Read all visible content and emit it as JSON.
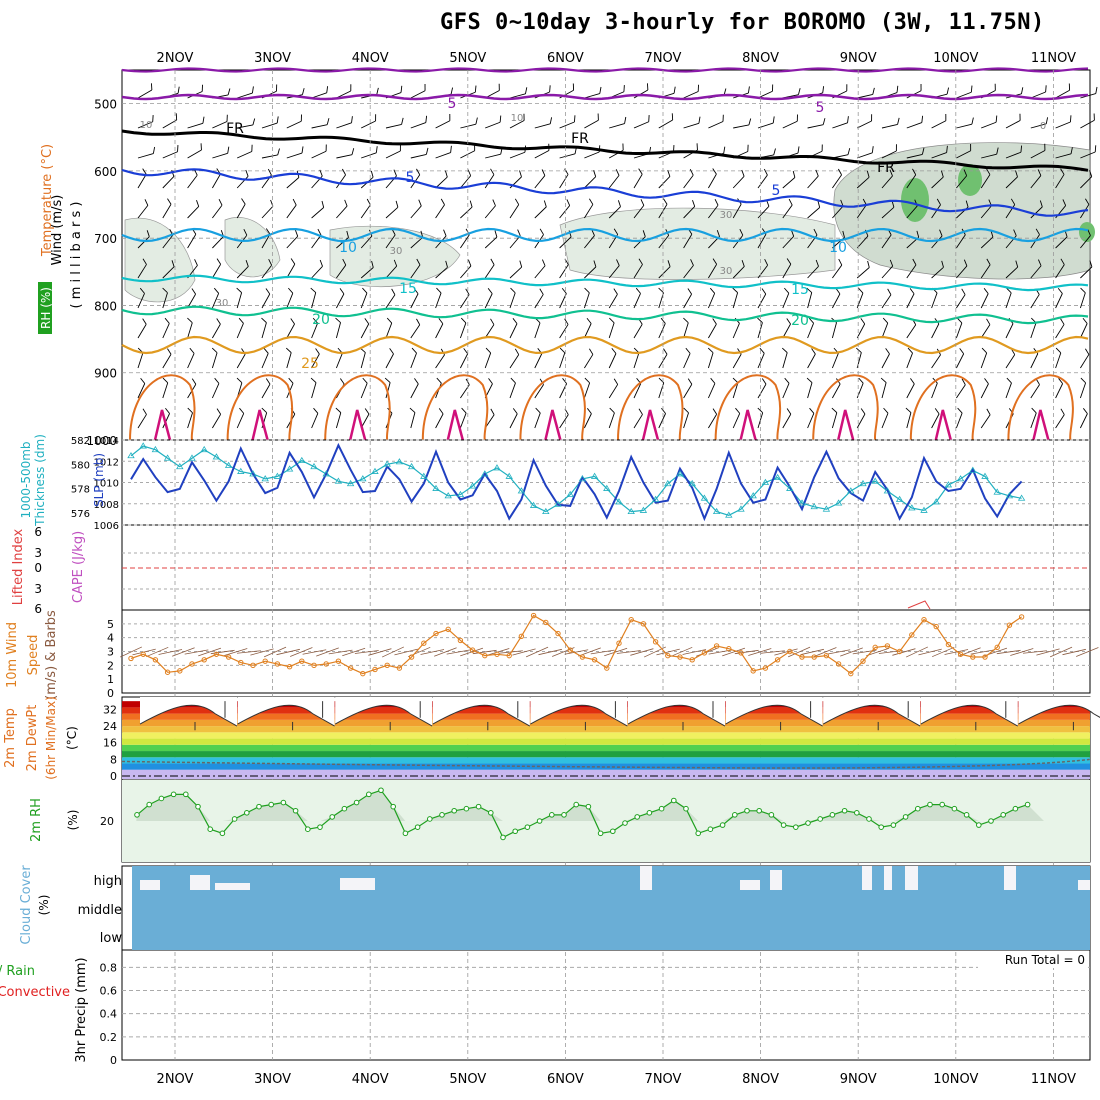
{
  "title": "GFS 0~10day 3-hourly for BOROMO (3W, 11.75N)",
  "days": [
    "2NOV",
    "3NOV",
    "4NOV",
    "5NOV",
    "6NOV",
    "7NOV",
    "8NOV",
    "9NOV",
    "10NOV",
    "11NOV"
  ],
  "colors": {
    "temp": "#e03030",
    "rh": "#20a020",
    "thick": "#20b0c0",
    "slp": "#2040c0",
    "cape": "#c050c0",
    "li": "#e04040",
    "wind10": "#e08020",
    "cloud": "#6aaed6",
    "precip_total": "#20a020",
    "precip_conv": "#e02020"
  },
  "panels": {
    "upper": {
      "labels": [
        "Wind (m/s)",
        "Temperature (°C)",
        "RH (%)",
        "( m i l l i b a r s )"
      ],
      "yticks": [
        "500",
        "600",
        "700",
        "800",
        "900",
        "1000"
      ],
      "contour_labels": [
        "5",
        "5",
        "FR",
        "FR",
        "FR",
        "5",
        "5",
        "10",
        "10",
        "15",
        "15",
        "20",
        "20",
        "25",
        "10",
        "10",
        "30",
        "30",
        "30",
        "30",
        "0"
      ]
    },
    "slp": {
      "labels": [
        "1000-500mb",
        "Thickness (dm)",
        "SLP (mb)"
      ],
      "left_ticks": [
        "582",
        "580",
        "578",
        "576"
      ],
      "right_ticks": [
        "1014",
        "1012",
        "1010",
        "1008",
        "1006"
      ]
    },
    "cape": {
      "labels": [
        "Lifted Index",
        "CAPE (J/kg)"
      ],
      "ticks": [
        "6",
        "3",
        "0",
        "3",
        "6"
      ]
    },
    "wind10": {
      "labels": [
        "10m Wind",
        "Speed",
        "(m/s) & Barbs"
      ],
      "ticks": [
        "5",
        "4",
        "3",
        "2",
        "1",
        "0"
      ]
    },
    "temp2m": {
      "labels": [
        "2m Temp",
        "2m DewPt",
        "(6hr Min/Max)",
        "(°C)"
      ],
      "ticks": [
        "32",
        "24",
        "16",
        "8",
        "0"
      ]
    },
    "rh2m": {
      "labels": [
        "2m RH",
        "(%)"
      ],
      "ticks": [
        "20"
      ]
    },
    "cloud": {
      "labels": [
        "Cloud Cover",
        "(%)"
      ],
      "ticks": [
        "high",
        "middle",
        "low"
      ]
    },
    "precip": {
      "labels": [
        "Total / Rain",
        "Convective",
        "3hr Precip (mm)"
      ],
      "ticks": [
        "0.8",
        "0.6",
        "0.4",
        "0.2",
        "0"
      ],
      "run_total": "Run Total = 0"
    }
  },
  "chart_data": [
    {
      "type": "line",
      "panel": "slp",
      "x_days_from_2NOV": [
        0,
        0.125,
        0.25,
        0.375,
        0.5,
        0.625,
        0.75,
        0.875,
        1,
        1.125,
        1.25,
        1.375,
        1.5,
        1.625,
        1.75,
        1.875,
        2,
        2.125,
        2.25,
        2.375,
        2.5,
        2.625,
        2.75,
        2.875,
        3,
        3.125,
        3.25,
        3.375,
        3.5,
        3.625,
        3.75,
        3.875,
        4,
        4.125,
        4.25,
        4.375,
        4.5,
        4.625,
        4.75,
        4.875,
        5,
        5.125,
        5.25,
        5.375,
        5.5,
        5.625,
        5.75,
        5.875,
        6,
        6.125,
        6.25,
        6.375,
        6.5,
        6.625,
        6.75,
        6.875,
        7,
        7.125,
        7.25,
        7.375,
        7.5,
        7.625,
        7.75,
        7.875,
        8,
        8.125,
        8.25,
        8.375,
        8.5,
        8.625,
        8.75,
        8.875,
        9,
        9.125
      ],
      "series": [
        {
          "name": "SLP (mb)",
          "values": [
            1010.3,
            1012.2,
            1010.5,
            1009.1,
            1009.4,
            1011.9,
            1010.2,
            1008.3,
            1010.1,
            1013.2,
            1010.8,
            1009.0,
            1009.5,
            1012.8,
            1011.0,
            1008.6,
            1010.8,
            1013.5,
            1011.2,
            1009.1,
            1009.2,
            1011.5,
            1010.3,
            1008.2,
            1009.9,
            1012.9,
            1010.0,
            1008.4,
            1008.8,
            1010.8,
            1009.2,
            1006.6,
            1008.4,
            1012.1,
            1009.7,
            1007.9,
            1007.8,
            1010.5,
            1008.9,
            1006.7,
            1009.2,
            1012.4,
            1010.0,
            1008.1,
            1008.3,
            1011.3,
            1009.5,
            1006.6,
            1009.4,
            1012.8,
            1009.9,
            1008.1,
            1008.4,
            1011.4,
            1009.6,
            1007.5,
            1010.5,
            1012.9,
            1010.4,
            1009.0,
            1008.3,
            1011.0,
            1009.3,
            1006.6,
            1008.6,
            1012.3,
            1010.1,
            1009.2,
            1009.4,
            1011.2,
            1008.5,
            1006.8,
            1008.9,
            1010.1
          ]
        },
        {
          "name": "1000-500mb Thickness (dm)",
          "values": [
            580.7,
            581.5,
            581.2,
            580.5,
            579.8,
            580.5,
            581.2,
            580.6,
            579.9,
            579.4,
            579.2,
            578.8,
            579.0,
            579.6,
            580.3,
            579.8,
            579.2,
            578.6,
            578.4,
            578.8,
            579.4,
            580.0,
            580.2,
            579.8,
            579.0,
            578.0,
            577.4,
            577.5,
            578.2,
            579.2,
            579.7,
            579.0,
            577.8,
            576.6,
            576.1,
            576.7,
            577.5,
            578.8,
            579.0,
            578.0,
            576.9,
            576.1,
            576.2,
            577.1,
            578.4,
            579.2,
            578.4,
            577.2,
            576.1,
            575.8,
            576.3,
            577.4,
            578.5,
            578.9,
            578.0,
            576.8,
            576.5,
            576.3,
            576.8,
            577.8,
            578.4,
            578.6,
            577.8,
            577.1,
            576.4,
            576.2,
            576.9,
            578.3,
            578.8,
            579.5,
            579.0,
            577.7,
            577.4,
            577.2
          ]
        }
      ],
      "ylim_left": [
        575,
        582
      ],
      "ylim_right": [
        1006,
        1014
      ]
    },
    {
      "type": "line",
      "panel": "wind10",
      "x_days_from_2NOV": [
        0,
        0.125,
        0.25,
        0.375,
        0.5,
        0.625,
        0.75,
        0.875,
        1,
        1.125,
        1.25,
        1.375,
        1.5,
        1.625,
        1.75,
        1.875,
        2,
        2.125,
        2.25,
        2.375,
        2.5,
        2.625,
        2.75,
        2.875,
        3,
        3.125,
        3.25,
        3.375,
        3.5,
        3.625,
        3.75,
        3.875,
        4,
        4.125,
        4.25,
        4.375,
        4.5,
        4.625,
        4.75,
        4.875,
        5,
        5.125,
        5.25,
        5.375,
        5.5,
        5.625,
        5.75,
        5.875,
        6,
        6.125,
        6.25,
        6.375,
        6.5,
        6.625,
        6.75,
        6.875,
        7,
        7.125,
        7.25,
        7.375,
        7.5,
        7.625,
        7.75,
        7.875,
        8,
        8.125,
        8.25,
        8.375,
        8.5,
        8.625,
        8.75,
        8.875,
        9,
        9.125
      ],
      "series": [
        {
          "name": "Speed (m/s)",
          "values": [
            2.5,
            2.8,
            2.4,
            1.5,
            1.6,
            2.1,
            2.4,
            2.8,
            2.6,
            2.2,
            2.0,
            2.3,
            2.1,
            1.9,
            2.3,
            2.0,
            2.1,
            2.3,
            1.8,
            1.4,
            1.7,
            2.0,
            1.8,
            2.6,
            3.6,
            4.3,
            4.6,
            3.8,
            3.1,
            2.7,
            2.8,
            2.7,
            4.1,
            5.6,
            5.1,
            4.3,
            3.1,
            2.6,
            2.4,
            1.8,
            3.6,
            5.3,
            5.0,
            3.7,
            2.7,
            2.6,
            2.4,
            2.9,
            3.4,
            3.2,
            2.9,
            1.6,
            1.8,
            2.4,
            3.0,
            2.6,
            2.6,
            2.7,
            2.1,
            1.4,
            2.3,
            3.3,
            3.4,
            3.0,
            4.2,
            5.3,
            4.8,
            3.5,
            2.8,
            2.6,
            2.6,
            3.3,
            4.9,
            5.5
          ]
        }
      ],
      "ylim": [
        0,
        6
      ]
    },
    {
      "type": "area",
      "panel": "rh2m",
      "x_days_from_2NOV": [
        0,
        0.125,
        0.25,
        0.375,
        0.5,
        0.625,
        0.75,
        0.875,
        1,
        1.125,
        1.25,
        1.375,
        1.5,
        1.625,
        1.75,
        1.875,
        2,
        2.125,
        2.25,
        2.375,
        2.5,
        2.625,
        2.75,
        2.875,
        3,
        3.125,
        3.25,
        3.375,
        3.5,
        3.625,
        3.75,
        3.875,
        4,
        4.125,
        4.25,
        4.375,
        4.5,
        4.625,
        4.75,
        4.875,
        5,
        5.125,
        5.25,
        5.375,
        5.5,
        5.625,
        5.75,
        5.875,
        6,
        6.125,
        6.25,
        6.375,
        6.5,
        6.625,
        6.75,
        6.875,
        7,
        7.125,
        7.25,
        7.375,
        7.5,
        7.625,
        7.75,
        7.875,
        8,
        8.125,
        8.25,
        8.375,
        8.5,
        8.625,
        8.75,
        8.875,
        9,
        9.125
      ],
      "series": [
        {
          "name": "2m RH (%)",
          "values": [
            23,
            28,
            31,
            33,
            33,
            27,
            16,
            14,
            21,
            24,
            27,
            28,
            29,
            25,
            16,
            17,
            22,
            26,
            29,
            33,
            35,
            27,
            14,
            17,
            21,
            23,
            25,
            26,
            27,
            24,
            12,
            15,
            17,
            20,
            23,
            23,
            28,
            27,
            14,
            15,
            19,
            22,
            24,
            26,
            30,
            26,
            14,
            16,
            18,
            23,
            25,
            25,
            23,
            18,
            17,
            19,
            21,
            23,
            25,
            24,
            21,
            17,
            18,
            22,
            26,
            28,
            28,
            26,
            23,
            18,
            20,
            23,
            26,
            28
          ]
        }
      ],
      "ylim": [
        0,
        40
      ]
    }
  ]
}
